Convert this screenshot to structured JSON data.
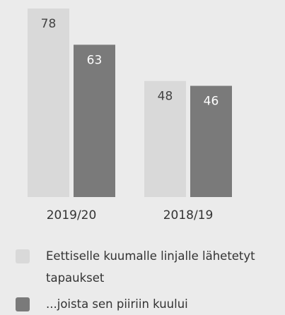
{
  "chart_data": {
    "type": "bar",
    "categories": [
      "2019/20",
      "2018/19"
    ],
    "series": [
      {
        "name": "Eettiselle kuumalle linjalle lähetetyt tapaukset",
        "values": [
          78,
          48
        ]
      },
      {
        "name": "...joista sen piiriin kuului",
        "values": [
          63,
          46
        ]
      }
    ],
    "ylim": [
      0,
      78
    ],
    "colors": {
      "series": [
        "#d9d9d9",
        "#7a7a7a"
      ],
      "label_on_light": "#444444",
      "label_on_dark": "#ffffff",
      "background": "#ebebeb"
    },
    "legend_position": "bottom-left",
    "grid": false
  }
}
